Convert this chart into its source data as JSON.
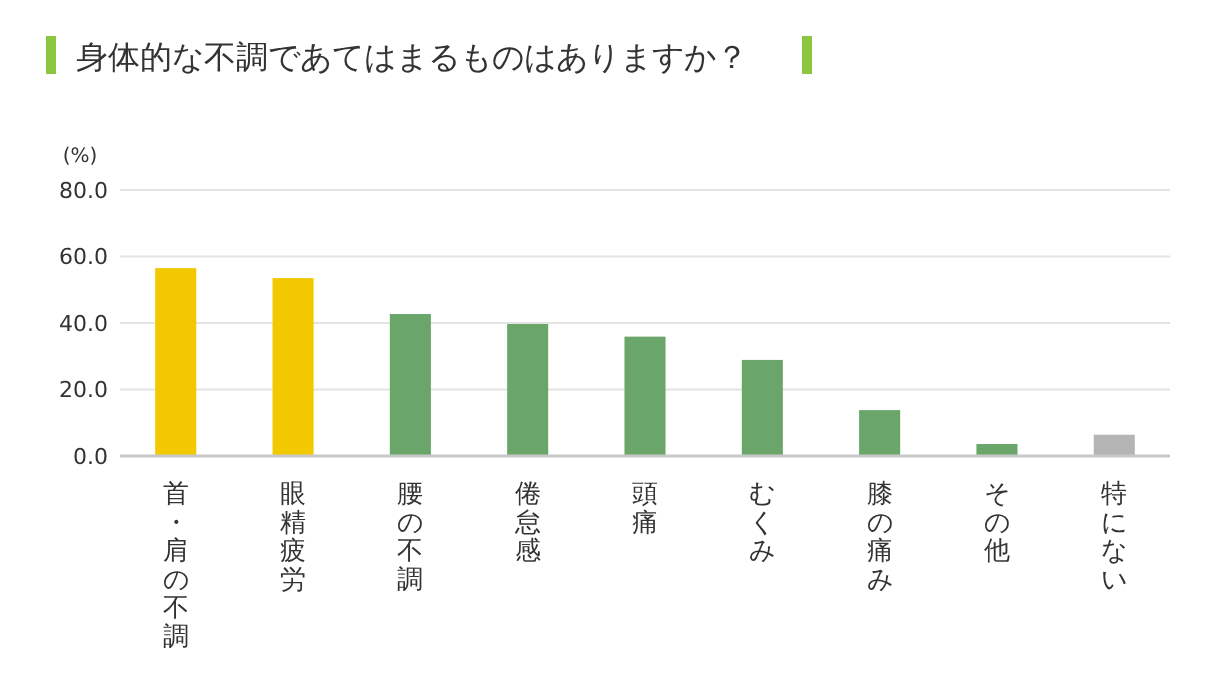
{
  "chart_data": {
    "type": "bar",
    "title": "身体的な不調であてはまるものはありますか？",
    "ylabel": "(%)",
    "categories": [
      "首・肩の不調",
      "眼精疲労",
      "腰の不調",
      "倦怠感",
      "頭痛",
      "むくみ",
      "膝の痛み",
      "その他",
      "特にない"
    ],
    "values": [
      56.5,
      53.5,
      42.7,
      39.7,
      35.9,
      28.9,
      13.8,
      3.6,
      6.4
    ],
    "colors": [
      "#f2c800",
      "#f2c800",
      "#6aa56a",
      "#6aa56a",
      "#6aa56a",
      "#6aa56a",
      "#6aa56a",
      "#6aa56a",
      "#b4b4b4"
    ],
    "ylim": [
      0,
      80
    ],
    "yticks": [
      {
        "value": 0,
        "label": "0.0"
      },
      {
        "value": 20,
        "label": "20.0"
      },
      {
        "value": 40,
        "label": "40.0"
      },
      {
        "value": 60,
        "label": "60.0"
      },
      {
        "value": 80,
        "label": "80.0"
      }
    ],
    "grid": "y"
  }
}
